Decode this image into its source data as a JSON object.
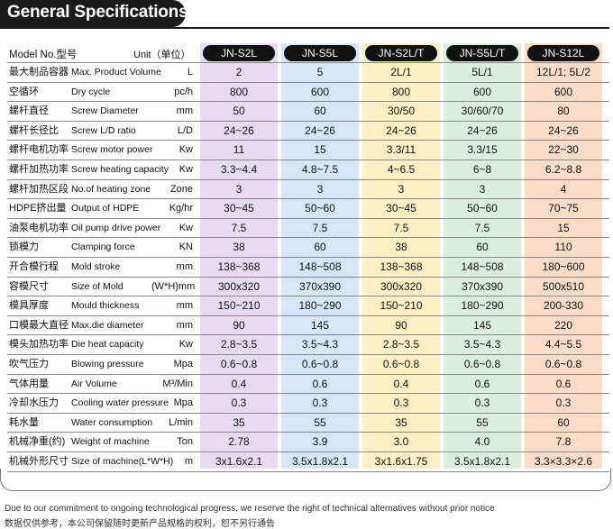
{
  "title": "General Specifications",
  "header": {
    "model_label": "Model No.型号",
    "unit_label": "Unit（单位）",
    "models": [
      "JN-S2L",
      "JN-S5L",
      "JN-S2L/T",
      "JN-S5L/T",
      "JN-S12L"
    ]
  },
  "column_colors": [
    "#e6dcf1",
    "#d6e8f7",
    "#fcf0c4",
    "#dcefdc",
    "#fbdcc6"
  ],
  "rows": [
    {
      "cn": "最大制品容器",
      "en": "Max. Product Volume",
      "unit": "L",
      "values": [
        "2",
        "5",
        "2L/1",
        "5L/1",
        "12L/1; 5L/2"
      ]
    },
    {
      "cn": "空循环",
      "en": "Dry cycle",
      "unit": "pc/h",
      "values": [
        "800",
        "600",
        "800",
        "600",
        "600"
      ]
    },
    {
      "cn": "螺杆直径",
      "en": "Screw Diameter",
      "unit": "mm",
      "values": [
        "50",
        "60",
        "30/50",
        "30/60/70",
        "80"
      ]
    },
    {
      "cn": "螺杆长径比",
      "en": "Screw L/D ratio",
      "unit": "L/D",
      "values": [
        "24~26",
        "24~26",
        "24~26",
        "24~26",
        "24~26"
      ]
    },
    {
      "cn": "螺杆电机功率",
      "en": "Screw motor power",
      "unit": "Kw",
      "values": [
        "11",
        "15",
        "3.3/11",
        "3.3/15",
        "22~30"
      ]
    },
    {
      "cn": "螺杆加热功率",
      "en": "Screw heating capacity",
      "unit": "Kw",
      "values": [
        "3.3~4.4",
        "4.8~7.5",
        "4~6.5",
        "6~8",
        "6.2~8.8"
      ]
    },
    {
      "cn": "螺杆加热区段",
      "en": "No.of heating zone",
      "unit": "Zone",
      "values": [
        "3",
        "3",
        "3",
        "3",
        "4"
      ]
    },
    {
      "cn": "HDPE挤出量",
      "en": "Output of HDPE",
      "unit": "Kg/hr",
      "values": [
        "30~45",
        "50~60",
        "30~45",
        "50~60",
        "70~75"
      ]
    },
    {
      "cn": "油泵电机功率",
      "en": "Oil pump drive power",
      "unit": "Kw",
      "values": [
        "7.5",
        "7.5",
        "7.5",
        "7.5",
        "15"
      ]
    },
    {
      "cn": "锁模力",
      "en": "Clamping force",
      "unit": "KN",
      "values": [
        "38",
        "60",
        "38",
        "60",
        "110"
      ]
    },
    {
      "cn": "开合模行程",
      "en": "Mold stroke",
      "unit": "mm",
      "values": [
        "138~368",
        "148~508",
        "138~368",
        "148~508",
        "180~600"
      ]
    },
    {
      "cn": "容模尺寸",
      "en": "Size of Mold",
      "unit": "(W*H)mm",
      "values": [
        "300x320",
        "370x390",
        "300x320",
        "370x390",
        "500x510"
      ]
    },
    {
      "cn": "模具厚度",
      "en": "Mould thickness",
      "unit": "mm",
      "values": [
        "150~210",
        "180~290",
        "150~210",
        "180~290",
        "200-330"
      ]
    },
    {
      "cn": "口模最大直径",
      "en": "Max.die diameter",
      "unit": "mm",
      "values": [
        "90",
        "145",
        "90",
        "145",
        "220"
      ]
    },
    {
      "cn": "模头加热功率",
      "en": "Die heat capacity",
      "unit": "Kw",
      "values": [
        "2.8~3.5",
        "3.5~4.3",
        "2.8~3.5",
        "3.5~4.3",
        "4.4~5.5"
      ]
    },
    {
      "cn": "吹气压力",
      "en": "Blowing pressure",
      "unit": "Mpa",
      "values": [
        "0.6~0.8",
        "0.6~0.8",
        "0.6~0.8",
        "0.6~0.8",
        "0.6~0.8"
      ]
    },
    {
      "cn": "气体用量",
      "en": "Air Volume",
      "unit": "M³/Min",
      "values": [
        "0.4",
        "0.6",
        "0.4",
        "0.6",
        "0.6"
      ]
    },
    {
      "cn": "冷却水压力",
      "en": "Cooling water pressure",
      "unit": "Mpa",
      "values": [
        "0.3",
        "0.3",
        "0.3",
        "0.3",
        "0.3"
      ]
    },
    {
      "cn": "耗水量",
      "en": "Water consumption",
      "unit": "L/min",
      "values": [
        "35",
        "55",
        "35",
        "55",
        "60"
      ]
    },
    {
      "cn": "机械净重(约)",
      "en": "Weight of machine",
      "unit": "Ton",
      "values": [
        "2.78",
        "3.9",
        "3.0",
        "4.0",
        "7.8"
      ]
    },
    {
      "cn": "机械外形尺寸",
      "en": "Size of machine(L*W*H)",
      "unit": "m",
      "values": [
        "3x1.6x2.1",
        "3.5x1.8x2.1",
        "3x1.6x1.75",
        "3.5x1.8x2.1",
        "3.3×3.3×2.6"
      ]
    }
  ],
  "notes": {
    "en": "Due to our commitment to ongoing technological progress, we reserve the right of technical alternatives without prior notice",
    "cn": "数据仅供参考，本公司保留随时更新产品规格的权利，恕不另行通告"
  }
}
